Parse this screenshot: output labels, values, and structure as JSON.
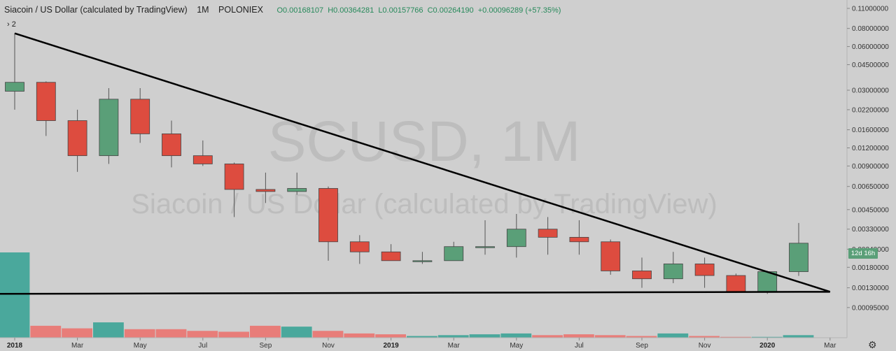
{
  "header": {
    "title": "Siacoin / US Dollar (calculated by TradingView)",
    "interval": "1M",
    "exchange": "POLONIEX",
    "ohlc": [
      "O0.00168107",
      "H0.00364281",
      "L0.00157766",
      "C0.00264190",
      "+0.00096289 (+57.35%)"
    ],
    "collapse_label": "2"
  },
  "watermark": {
    "ticker": "SCUSD, 1M",
    "name": "Siacoin / US Dollar (calculated by TradingView)"
  },
  "countdown_label": "12d 16h",
  "colors": {
    "up": "#5a9f78",
    "down": "#dd4c3f",
    "up_vol": "#4aa89c",
    "down_vol": "#e87d79",
    "trend": "#000000"
  },
  "chart_data": {
    "type": "candlestick",
    "scale": "log",
    "ylim": [
      0.00083,
      0.115
    ],
    "y_ticks": [
      "0.11000000",
      "0.08000000",
      "0.06000000",
      "0.04500000",
      "0.03000000",
      "0.02200000",
      "0.01600000",
      "0.01200000",
      "0.00900000",
      "0.00650000",
      "0.00450000",
      "0.00330000",
      "0.00240000",
      "0.00180000",
      "0.00130000",
      "0.00095000"
    ],
    "x_ticks": [
      "2018",
      "Mar",
      "May",
      "Jul",
      "Sep",
      "Nov",
      "2019",
      "Mar",
      "May",
      "Jul",
      "Sep",
      "Nov",
      "2020",
      "Mar"
    ],
    "months": [
      "2018-01",
      "2018-02",
      "2018-03",
      "2018-04",
      "2018-05",
      "2018-06",
      "2018-07",
      "2018-08",
      "2018-09",
      "2018-10",
      "2018-11",
      "2018-12",
      "2019-01",
      "2019-02",
      "2019-03",
      "2019-04",
      "2019-05",
      "2019-06",
      "2019-07",
      "2019-08",
      "2019-09",
      "2019-10",
      "2019-11",
      "2019-12",
      "2020-01",
      "2020-02"
    ],
    "open": [
      0.0295,
      0.034,
      0.0185,
      0.0106,
      0.026,
      0.015,
      0.0106,
      0.0093,
      0.0062,
      0.006,
      0.0063,
      0.0027,
      0.0023,
      0.002,
      0.002,
      0.0025,
      0.0025,
      0.0033,
      0.0029,
      0.0027,
      0.0017,
      0.0015,
      0.0019,
      0.00158,
      0.00122,
      0.00168
    ],
    "high": [
      0.074,
      0.0345,
      0.022,
      0.031,
      0.031,
      0.0185,
      0.0135,
      0.0095,
      0.0081,
      0.0081,
      0.0065,
      0.003,
      0.0026,
      0.0023,
      0.0027,
      0.0038,
      0.0042,
      0.004,
      0.0038,
      0.0028,
      0.0021,
      0.0023,
      0.0021,
      0.00163,
      0.0017,
      0.00364
    ],
    "low": [
      0.022,
      0.0145,
      0.0082,
      0.0093,
      0.013,
      0.0088,
      0.009,
      0.004,
      0.005,
      0.0057,
      0.002,
      0.0019,
      0.002,
      0.0019,
      0.002,
      0.0022,
      0.0021,
      0.0022,
      0.0022,
      0.0016,
      0.0013,
      0.0014,
      0.0013,
      0.0012,
      0.00118,
      0.00157
    ],
    "close": [
      0.034,
      0.0185,
      0.0106,
      0.026,
      0.015,
      0.0106,
      0.0093,
      0.0062,
      0.006,
      0.0063,
      0.0027,
      0.0023,
      0.002,
      0.002,
      0.0025,
      0.0025,
      0.0033,
      0.0029,
      0.0027,
      0.0017,
      0.0015,
      0.0019,
      0.00158,
      0.00122,
      0.00168,
      0.00264
    ],
    "volume_relative": [
      1.0,
      0.14,
      0.11,
      0.18,
      0.1,
      0.1,
      0.08,
      0.07,
      0.14,
      0.13,
      0.08,
      0.05,
      0.04,
      0.02,
      0.03,
      0.04,
      0.05,
      0.03,
      0.04,
      0.03,
      0.02,
      0.05,
      0.02,
      0.01,
      0.01,
      0.03
    ],
    "trendlines": [
      {
        "name": "upper",
        "from": {
          "date": "2018-01",
          "price": 0.074
        },
        "to": {
          "date": "2020-03",
          "price": 0.00122
        }
      },
      {
        "name": "lower",
        "from": {
          "date": "2017-12",
          "price": 0.00118
        },
        "to": {
          "date": "2020-03",
          "price": 0.00122
        }
      }
    ]
  }
}
